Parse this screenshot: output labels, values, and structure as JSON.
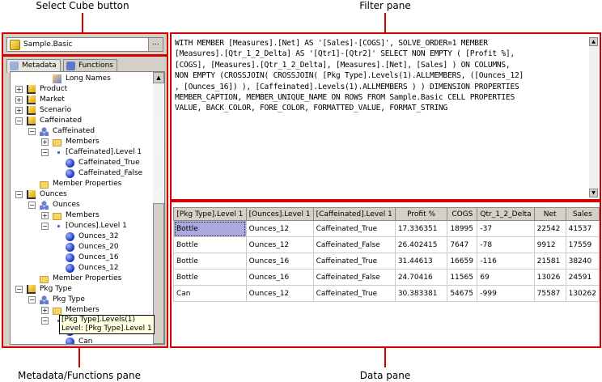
{
  "annotations": {
    "select_cube": "Select Cube button",
    "filter": "Filter pane",
    "metadata": "Metadata/Functions pane",
    "data": "Data pane"
  },
  "cube": {
    "name": "Sample.Basic",
    "browse_label": "..."
  },
  "tabs": [
    {
      "label": "Metadata"
    },
    {
      "label": "Functions"
    }
  ],
  "tree": [
    {
      "label": "Long Names",
      "level": 1,
      "icon": "long-names-icon",
      "toggle": ""
    },
    {
      "label": "Product",
      "level": 0,
      "icon": "dimension-icon",
      "toggle": "+"
    },
    {
      "label": "Market",
      "level": 0,
      "icon": "dimension-icon",
      "toggle": "+"
    },
    {
      "label": "Scenario",
      "level": 0,
      "icon": "dimension-icon",
      "toggle": "+"
    },
    {
      "label": "Caffeinated",
      "level": 0,
      "icon": "dimension-icon",
      "toggle": "-"
    },
    {
      "label": "Caffeinated",
      "level": 1,
      "icon": "hierarchy-icon",
      "toggle": "-"
    },
    {
      "label": "Members",
      "level": 2,
      "icon": "members-folder-icon",
      "toggle": "+"
    },
    {
      "label": "[Caffeinated].Level 1",
      "level": 2,
      "icon": "level-icon",
      "toggle": "-"
    },
    {
      "label": "Caffeinated_True",
      "level": 3,
      "icon": "member-icon",
      "toggle": ""
    },
    {
      "label": "Caffeinated_False",
      "level": 3,
      "icon": "member-icon",
      "toggle": ""
    },
    {
      "label": "Member Properties",
      "level": 1,
      "icon": "folder-icon",
      "toggle": ""
    },
    {
      "label": "Ounces",
      "level": 0,
      "icon": "dimension-icon",
      "toggle": "-"
    },
    {
      "label": "Ounces",
      "level": 1,
      "icon": "hierarchy-icon",
      "toggle": "-"
    },
    {
      "label": "Members",
      "level": 2,
      "icon": "members-folder-icon",
      "toggle": "+"
    },
    {
      "label": "[Ounces].Level 1",
      "level": 2,
      "icon": "level-icon",
      "toggle": "-"
    },
    {
      "label": "Ounces_32",
      "level": 3,
      "icon": "member-icon",
      "toggle": ""
    },
    {
      "label": "Ounces_20",
      "level": 3,
      "icon": "member-icon",
      "toggle": ""
    },
    {
      "label": "Ounces_16",
      "level": 3,
      "icon": "member-icon",
      "toggle": ""
    },
    {
      "label": "Ounces_12",
      "level": 3,
      "icon": "member-icon",
      "toggle": ""
    },
    {
      "label": "Member Properties",
      "level": 1,
      "icon": "folder-icon",
      "toggle": ""
    },
    {
      "label": "Pkg Type",
      "level": 0,
      "icon": "dimension-icon",
      "toggle": "-"
    },
    {
      "label": "Pkg Type",
      "level": 1,
      "icon": "hierarchy-icon",
      "toggle": "-"
    },
    {
      "label": "Members",
      "level": 2,
      "icon": "members-folder-icon",
      "toggle": "+"
    },
    {
      "label": "",
      "level": 2,
      "icon": "level-icon",
      "toggle": "-"
    },
    {
      "label": "",
      "level": 3,
      "icon": "member-icon",
      "toggle": ""
    },
    {
      "label": "Can",
      "level": 3,
      "icon": "member-icon",
      "toggle": ""
    }
  ],
  "tooltip": {
    "line1": "[Pkg Type].Levels(1)",
    "line2": "Level: [Pkg Type].Level 1"
  },
  "mdx_lines": [
    "WITH MEMBER [Measures].[Net] AS '[Sales]-[COGS]', SOLVE_ORDER=1 MEMBER",
    "[Measures].[Qtr_1_2_Delta] AS '[Qtr1]-[Qtr2]' SELECT NON EMPTY ( [Profit %],",
    "[COGS], [Measures].[Qtr_1_2_Delta], [Measures].[Net], [Sales] ) ON COLUMNS,",
    "NON EMPTY (CROSSJOIN( CROSSJOIN( [Pkg Type].Levels(1).ALLMEMBERS, ([Ounces_12]",
    ", [Ounces_16]) ), [Caffeinated].Levels(1).ALLMEMBERS ) ) DIMENSION PROPERTIES",
    "MEMBER_CAPTION, MEMBER_UNIQUE_NAME ON ROWS FROM Sample.Basic CELL PROPERTIES",
    "VALUE, BACK_COLOR, FORE_COLOR, FORMATTED_VALUE, FORMAT_STRING"
  ],
  "grid": {
    "columns": [
      "[Pkg Type].Level 1",
      "[Ounces].Level 1",
      "[Caffeinated].Level 1",
      "Profit %",
      "COGS",
      "Qtr_1_2_Delta",
      "Net",
      "Sales"
    ],
    "rows": [
      [
        "Bottle",
        "Ounces_12",
        "Caffeinated_True",
        "17.336351",
        "18995",
        "-37",
        "22542",
        "41537"
      ],
      [
        "Bottle",
        "Ounces_12",
        "Caffeinated_False",
        "26.402415",
        "7647",
        "-78",
        "9912",
        "17559"
      ],
      [
        "Bottle",
        "Ounces_16",
        "Caffeinated_True",
        "31.44613",
        "16659",
        "-116",
        "21581",
        "38240"
      ],
      [
        "Bottle",
        "Ounces_16",
        "Caffeinated_False",
        "24.70416",
        "11565",
        "69",
        "13026",
        "24591"
      ],
      [
        "Can",
        "Ounces_12",
        "Caffeinated_True",
        "30.383381",
        "54675",
        "-999",
        "75587",
        "130262"
      ]
    ]
  },
  "colors": {
    "annotation_red": "#d40000",
    "selected_cell": "#a9a9de",
    "chrome": "#d4d0c8"
  }
}
